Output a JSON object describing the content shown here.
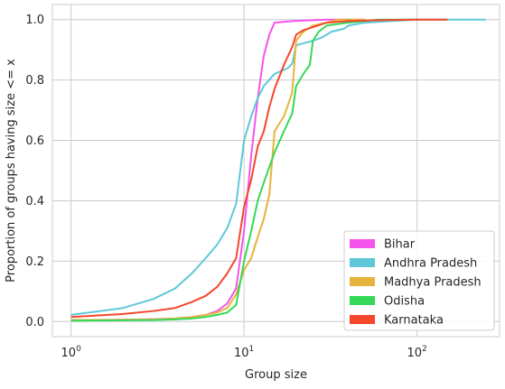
{
  "chart_data": {
    "type": "line",
    "xscale": "log",
    "xlabel": "Group size",
    "ylabel": "Proportion of groups having size <= x",
    "xlim": [
      0.78,
      300
    ],
    "ylim": [
      -0.05,
      1.05
    ],
    "grid": true,
    "legend_position": "lower right",
    "x_ticks": [
      {
        "value": 1,
        "base": "10",
        "exp": "0"
      },
      {
        "value": 10,
        "base": "10",
        "exp": "1"
      },
      {
        "value": 100,
        "base": "10",
        "exp": "2"
      }
    ],
    "y_ticks": [
      {
        "value": 0.0,
        "label": "0.0"
      },
      {
        "value": 0.2,
        "label": "0.2"
      },
      {
        "value": 0.4,
        "label": "0.4"
      },
      {
        "value": 0.6,
        "label": "0.6"
      },
      {
        "value": 0.8,
        "label": "0.8"
      },
      {
        "value": 1.0,
        "label": "1.0"
      }
    ],
    "series": [
      {
        "name": "Bihar",
        "color": "#f554ec",
        "points": [
          [
            1,
            0.005
          ],
          [
            2,
            0.006
          ],
          [
            3,
            0.008
          ],
          [
            4,
            0.01
          ],
          [
            5,
            0.015
          ],
          [
            6,
            0.022
          ],
          [
            7,
            0.035
          ],
          [
            8,
            0.06
          ],
          [
            9,
            0.11
          ],
          [
            10,
            0.3
          ],
          [
            11,
            0.55
          ],
          [
            12,
            0.74
          ],
          [
            13,
            0.88
          ],
          [
            14,
            0.95
          ],
          [
            15,
            0.99
          ],
          [
            17,
            0.993
          ],
          [
            20,
            0.996
          ],
          [
            25,
            0.998
          ],
          [
            30,
            1.0
          ],
          [
            50,
            1.0
          ]
        ]
      },
      {
        "name": "Andhra Pradesh",
        "color": "#5ec8d8",
        "points": [
          [
            1,
            0.022
          ],
          [
            2,
            0.045
          ],
          [
            3,
            0.075
          ],
          [
            4,
            0.11
          ],
          [
            5,
            0.16
          ],
          [
            6,
            0.21
          ],
          [
            7,
            0.255
          ],
          [
            8,
            0.31
          ],
          [
            9,
            0.39
          ],
          [
            10,
            0.6
          ],
          [
            11,
            0.68
          ],
          [
            12,
            0.74
          ],
          [
            13,
            0.78
          ],
          [
            15,
            0.82
          ],
          [
            18,
            0.84
          ],
          [
            19,
            0.855
          ],
          [
            20,
            0.915
          ],
          [
            25,
            0.93
          ],
          [
            28,
            0.94
          ],
          [
            30,
            0.95
          ],
          [
            32,
            0.96
          ],
          [
            38,
            0.97
          ],
          [
            40,
            0.98
          ],
          [
            50,
            0.99
          ],
          [
            70,
            0.995
          ],
          [
            100,
            1.0
          ],
          [
            150,
            1.0
          ],
          [
            250,
            1.0
          ]
        ]
      },
      {
        "name": "Madhya Pradesh",
        "color": "#e6b43c",
        "points": [
          [
            1,
            0.005
          ],
          [
            2,
            0.006
          ],
          [
            3,
            0.007
          ],
          [
            4,
            0.01
          ],
          [
            5,
            0.015
          ],
          [
            6,
            0.022
          ],
          [
            7,
            0.03
          ],
          [
            8,
            0.045
          ],
          [
            9,
            0.09
          ],
          [
            10,
            0.17
          ],
          [
            11,
            0.21
          ],
          [
            12,
            0.28
          ],
          [
            13,
            0.34
          ],
          [
            14,
            0.42
          ],
          [
            15,
            0.63
          ],
          [
            17,
            0.68
          ],
          [
            18,
            0.72
          ],
          [
            19,
            0.76
          ],
          [
            20,
            0.93
          ],
          [
            22,
            0.96
          ],
          [
            25,
            0.98
          ],
          [
            30,
            0.99
          ],
          [
            35,
            1.0
          ],
          [
            50,
            1.0
          ]
        ]
      },
      {
        "name": "Odisha",
        "color": "#35d857",
        "points": [
          [
            1,
            0.003
          ],
          [
            2,
            0.004
          ],
          [
            3,
            0.005
          ],
          [
            4,
            0.007
          ],
          [
            5,
            0.01
          ],
          [
            6,
            0.015
          ],
          [
            7,
            0.022
          ],
          [
            8,
            0.03
          ],
          [
            9,
            0.055
          ],
          [
            10,
            0.2
          ],
          [
            11,
            0.3
          ],
          [
            12,
            0.4
          ],
          [
            13,
            0.46
          ],
          [
            15,
            0.56
          ],
          [
            17,
            0.63
          ],
          [
            19,
            0.69
          ],
          [
            20,
            0.78
          ],
          [
            22,
            0.82
          ],
          [
            24,
            0.85
          ],
          [
            25,
            0.93
          ],
          [
            27,
            0.96
          ],
          [
            30,
            0.98
          ],
          [
            40,
            0.99
          ],
          [
            60,
            1.0
          ],
          [
            100,
            1.0
          ]
        ]
      },
      {
        "name": "Karnataka",
        "color": "#f4472c",
        "points": [
          [
            1,
            0.015
          ],
          [
            2,
            0.025
          ],
          [
            3,
            0.035
          ],
          [
            4,
            0.045
          ],
          [
            5,
            0.065
          ],
          [
            6,
            0.085
          ],
          [
            7,
            0.115
          ],
          [
            8,
            0.16
          ],
          [
            9,
            0.21
          ],
          [
            10,
            0.38
          ],
          [
            11,
            0.47
          ],
          [
            12,
            0.58
          ],
          [
            13,
            0.63
          ],
          [
            14,
            0.71
          ],
          [
            15,
            0.77
          ],
          [
            17,
            0.85
          ],
          [
            19,
            0.91
          ],
          [
            20,
            0.95
          ],
          [
            22,
            0.965
          ],
          [
            25,
            0.975
          ],
          [
            30,
            0.99
          ],
          [
            40,
            0.995
          ],
          [
            60,
            0.998
          ],
          [
            100,
            1.0
          ],
          [
            150,
            1.0
          ]
        ]
      }
    ]
  }
}
